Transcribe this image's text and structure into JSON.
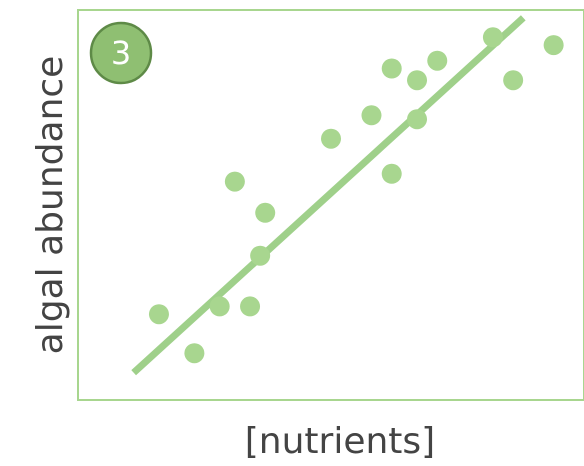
{
  "chart_data": {
    "type": "scatter",
    "badge": "3",
    "xlabel": "[nutrients]",
    "ylabel": "algal abundance",
    "xlim": [
      0,
      100
    ],
    "ylim": [
      0,
      100
    ],
    "color": "#a8d68f",
    "x": [
      16,
      23,
      28,
      34,
      36,
      37,
      31,
      50,
      58,
      62,
      62,
      67,
      67,
      71,
      82,
      86,
      94
    ],
    "y": [
      22,
      12,
      24,
      24,
      37,
      48,
      56,
      67,
      73,
      85,
      58,
      82,
      72,
      87,
      93,
      82,
      91
    ],
    "trend": {
      "x": [
        11,
        88
      ],
      "y": [
        7,
        98
      ],
      "color": "#9fd08a"
    }
  }
}
